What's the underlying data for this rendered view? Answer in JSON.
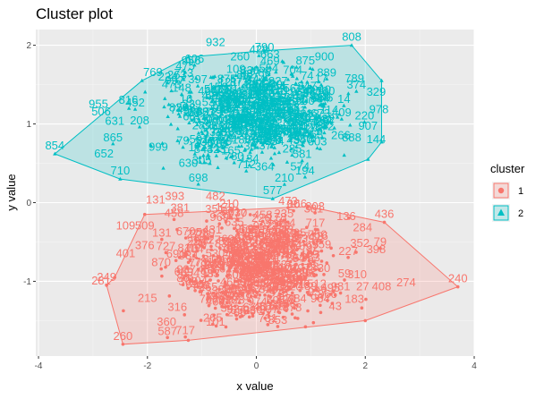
{
  "chart_data": {
    "type": "scatter",
    "title": "Cluster plot",
    "xlabel": "x value",
    "ylabel": "y value",
    "xlim": [
      -4.05,
      4.0
    ],
    "ylim": [
      -1.95,
      2.2
    ],
    "x_ticks": [
      -4,
      -2,
      0,
      2,
      4
    ],
    "y_ticks": [
      -1,
      0,
      1,
      2
    ],
    "x_tick_labels": [
      "-4",
      "-2",
      "0",
      "2",
      "4"
    ],
    "y_tick_labels": [
      "-1",
      "0",
      "1",
      "2"
    ],
    "grid": true,
    "legend": {
      "title": "cluster",
      "position": "right"
    },
    "series": [
      {
        "name": "1",
        "color": "#F8766D",
        "marker": "circle",
        "center": [
          0.0,
          -0.85
        ],
        "spread": [
          0.72,
          0.34
        ],
        "point_count": 500,
        "hull": [
          [
            -2.45,
            -1.8
          ],
          [
            -2.75,
            -1.05
          ],
          [
            -2.6,
            -0.95
          ],
          [
            -2.05,
            -0.15
          ],
          [
            0.95,
            -0.05
          ],
          [
            2.35,
            -0.25
          ],
          [
            3.7,
            -1.07
          ],
          [
            2.0,
            -1.5
          ],
          [
            -1.25,
            -1.75
          ]
        ],
        "labels": [
          {
            "text": "240",
            "x": 3.7,
            "y": -1.07
          },
          {
            "text": "436",
            "x": 2.35,
            "y": -0.25
          },
          {
            "text": "260",
            "x": -2.45,
            "y": -1.8
          },
          {
            "text": "131",
            "x": -1.85,
            "y": -0.07
          },
          {
            "text": "393",
            "x": -1.5,
            "y": -0.02
          },
          {
            "text": "482",
            "x": -0.75,
            "y": -0.02
          },
          {
            "text": "166",
            "x": 0.75,
            "y": -0.12
          },
          {
            "text": "381",
            "x": 1.05,
            "y": -0.18
          },
          {
            "text": "136",
            "x": 1.65,
            "y": -0.28
          },
          {
            "text": "284",
            "x": 1.95,
            "y": -0.42
          },
          {
            "text": "352",
            "x": 1.9,
            "y": -0.62
          },
          {
            "text": "398",
            "x": 2.2,
            "y": -0.7
          },
          {
            "text": "274",
            "x": 2.75,
            "y": -1.12
          },
          {
            "text": "408",
            "x": 2.3,
            "y": -1.17
          },
          {
            "text": "27",
            "x": 1.95,
            "y": -1.17
          },
          {
            "text": "183",
            "x": 1.8,
            "y": -1.33
          },
          {
            "text": "43",
            "x": 1.45,
            "y": -1.42
          },
          {
            "text": "101",
            "x": -0.75,
            "y": -1.62
          },
          {
            "text": "360",
            "x": -1.65,
            "y": -1.62
          },
          {
            "text": "316",
            "x": -1.45,
            "y": -1.43
          },
          {
            "text": "215",
            "x": -2.0,
            "y": -1.32
          },
          {
            "text": "249",
            "x": -2.75,
            "y": -1.05
          },
          {
            "text": "281",
            "x": -2.85,
            "y": -1.1
          },
          {
            "text": "109",
            "x": -2.4,
            "y": -0.4
          },
          {
            "text": "509",
            "x": -2.05,
            "y": -0.4
          },
          {
            "text": "401",
            "x": -2.4,
            "y": -0.75
          },
          {
            "text": "381",
            "x": -1.4,
            "y": -0.17
          },
          {
            "text": "210",
            "x": -0.5,
            "y": -0.12
          },
          {
            "text": "310",
            "x": 1.85,
            "y": -1.02
          },
          {
            "text": "376",
            "x": -2.05,
            "y": -0.65
          }
        ]
      },
      {
        "name": "2",
        "color": "#00BFC4",
        "marker": "triangle",
        "center": [
          0.0,
          1.08
        ],
        "spread": [
          0.78,
          0.3
        ],
        "point_count": 500,
        "hull": [
          [
            -3.7,
            0.62
          ],
          [
            -2.5,
            0.3
          ],
          [
            0.3,
            0.05
          ],
          [
            2.05,
            0.55
          ],
          [
            2.3,
            0.77
          ],
          [
            2.3,
            1.55
          ],
          [
            1.75,
            2.0
          ],
          [
            0.15,
            1.93
          ],
          [
            -1.25,
            1.85
          ],
          [
            -2.1,
            1.55
          ]
        ],
        "labels": [
          {
            "text": "808",
            "x": 1.75,
            "y": 2.0
          },
          {
            "text": "932",
            "x": -0.75,
            "y": 1.93
          },
          {
            "text": "790",
            "x": 0.15,
            "y": 1.87
          },
          {
            "text": "854",
            "x": -3.7,
            "y": 0.62
          },
          {
            "text": "710",
            "x": -2.5,
            "y": 0.3
          },
          {
            "text": "577",
            "x": 0.3,
            "y": 0.05
          },
          {
            "text": "652",
            "x": -2.8,
            "y": 0.52
          },
          {
            "text": "631",
            "x": -2.6,
            "y": 0.93
          },
          {
            "text": "955",
            "x": -2.9,
            "y": 1.15
          },
          {
            "text": "506",
            "x": -2.85,
            "y": 1.05
          },
          {
            "text": "769",
            "x": -1.9,
            "y": 1.55
          },
          {
            "text": "956",
            "x": -1.2,
            "y": 1.7
          },
          {
            "text": "997",
            "x": -1.5,
            "y": 1.45
          },
          {
            "text": "900",
            "x": 1.25,
            "y": 1.75
          },
          {
            "text": "875",
            "x": 0.9,
            "y": 1.7
          },
          {
            "text": "789",
            "x": 1.8,
            "y": 1.47
          },
          {
            "text": "329",
            "x": 2.2,
            "y": 1.3
          },
          {
            "text": "907",
            "x": 2.05,
            "y": 0.87
          },
          {
            "text": "144",
            "x": 2.2,
            "y": 0.7
          },
          {
            "text": "574",
            "x": 0.8,
            "y": 0.35
          },
          {
            "text": "364",
            "x": 0.15,
            "y": 0.35
          },
          {
            "text": "630",
            "x": -1.25,
            "y": 0.4
          },
          {
            "text": "305",
            "x": -1.0,
            "y": 0.43
          },
          {
            "text": "999",
            "x": -1.8,
            "y": 0.6
          },
          {
            "text": "816",
            "x": -2.35,
            "y": 1.2
          },
          {
            "text": "663",
            "x": 0.25,
            "y": 1.78
          },
          {
            "text": "978",
            "x": 2.25,
            "y": 1.08
          },
          {
            "text": "888",
            "x": 1.75,
            "y": 0.72
          },
          {
            "text": "266",
            "x": 1.55,
            "y": 0.75
          },
          {
            "text": "260",
            "x": -0.3,
            "y": 1.75
          }
        ]
      }
    ]
  }
}
